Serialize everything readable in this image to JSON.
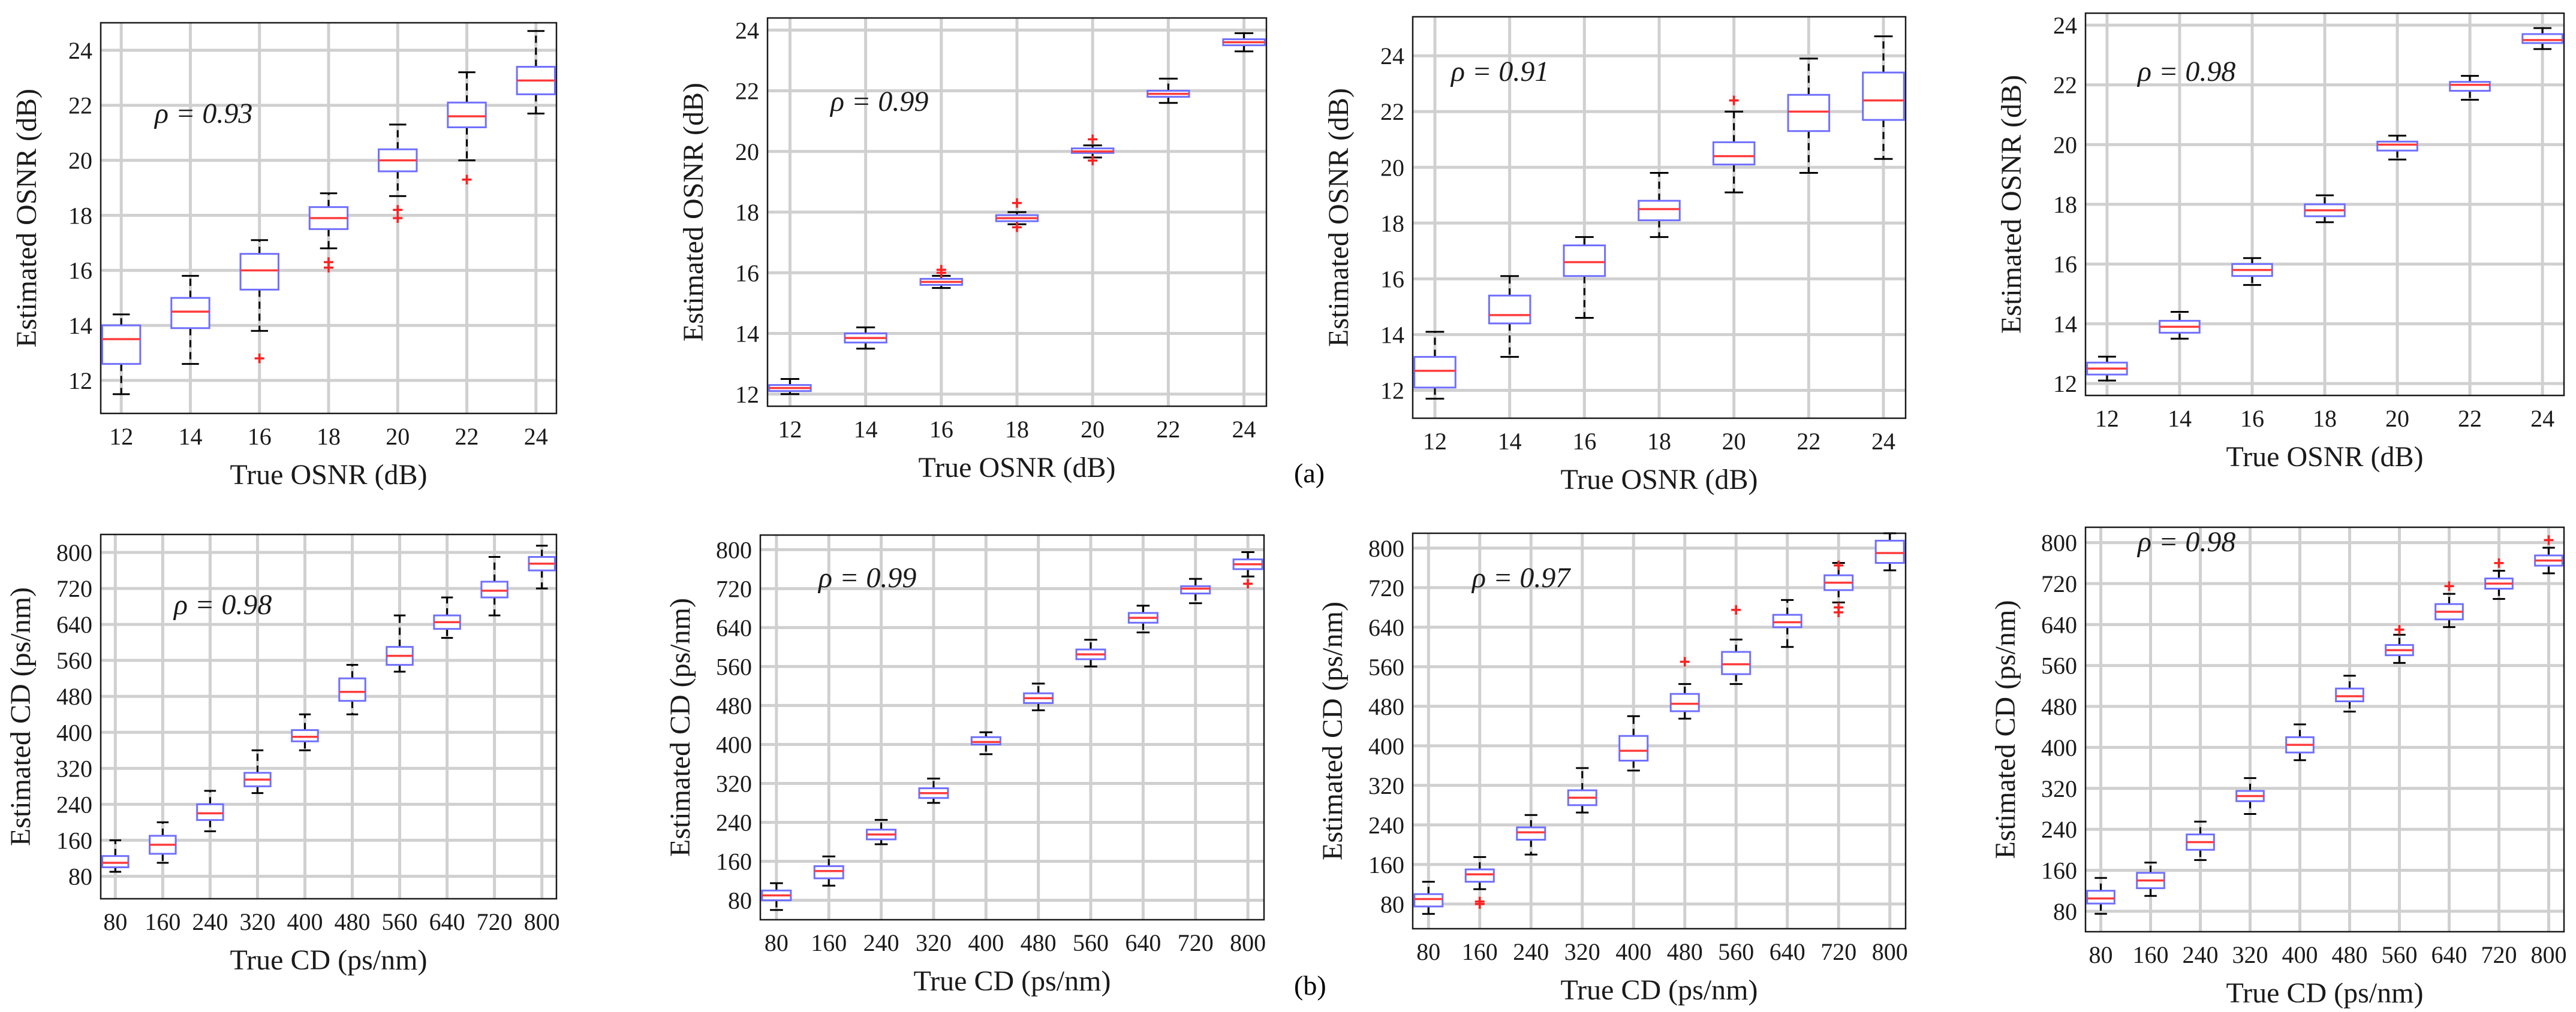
{
  "figure": {
    "label_a": "(a)",
    "label_b": "(b)"
  },
  "colors": {
    "box": "#6f6fff",
    "median": "#ff3b3b",
    "outlier": "#ff2020",
    "whisker": "#000000",
    "grid": "#d0d0d0",
    "frame": "#1a1a1a",
    "text": "#1a1a1a"
  },
  "chart_data": [
    {
      "type": "box",
      "title": "",
      "xlabel": "True OSNR (dB)",
      "ylabel": "Estimated OSNR (dB)",
      "annotation": "ρ = 0.93",
      "categories": [
        "12",
        "14",
        "16",
        "18",
        "20",
        "22",
        "24"
      ],
      "yticks": [
        12,
        14,
        16,
        18,
        20,
        22,
        24
      ],
      "ylim": [
        10.8,
        25.0
      ],
      "grid": true,
      "boxes": [
        {
          "q1": 12.6,
          "median": 13.5,
          "q3": 14.0,
          "whisker_low": 11.5,
          "whisker_high": 14.4,
          "outliers": []
        },
        {
          "q1": 13.9,
          "median": 14.5,
          "q3": 15.0,
          "whisker_low": 12.6,
          "whisker_high": 15.8,
          "outliers": []
        },
        {
          "q1": 15.3,
          "median": 16.0,
          "q3": 16.6,
          "whisker_low": 13.8,
          "whisker_high": 17.1,
          "outliers": [
            12.8
          ]
        },
        {
          "q1": 17.5,
          "median": 17.9,
          "q3": 18.3,
          "whisker_low": 16.8,
          "whisker_high": 18.8,
          "outliers": [
            16.3,
            16.1
          ]
        },
        {
          "q1": 19.6,
          "median": 20.0,
          "q3": 20.4,
          "whisker_low": 18.7,
          "whisker_high": 21.3,
          "outliers": [
            18.2,
            17.9
          ]
        },
        {
          "q1": 21.2,
          "median": 21.6,
          "q3": 22.1,
          "whisker_low": 20.0,
          "whisker_high": 23.2,
          "outliers": [
            19.3
          ]
        },
        {
          "q1": 22.4,
          "median": 22.9,
          "q3": 23.4,
          "whisker_low": 21.7,
          "whisker_high": 24.7,
          "outliers": []
        }
      ]
    },
    {
      "type": "box",
      "title": "",
      "xlabel": "True OSNR (dB)",
      "ylabel": "Estimated OSNR (dB)",
      "annotation": "ρ = 0.99",
      "categories": [
        "12",
        "14",
        "16",
        "18",
        "20",
        "22",
        "24"
      ],
      "yticks": [
        12,
        14,
        16,
        18,
        20,
        22,
        24
      ],
      "ylim": [
        11.6,
        24.4
      ],
      "grid": true,
      "boxes": [
        {
          "q1": 12.1,
          "median": 12.2,
          "q3": 12.3,
          "whisker_low": 12.0,
          "whisker_high": 12.5,
          "outliers": []
        },
        {
          "q1": 13.7,
          "median": 13.85,
          "q3": 14.0,
          "whisker_low": 13.5,
          "whisker_high": 14.2,
          "outliers": []
        },
        {
          "q1": 15.6,
          "median": 15.7,
          "q3": 15.8,
          "whisker_low": 15.5,
          "whisker_high": 15.9,
          "outliers": [
            16.1,
            16.0
          ]
        },
        {
          "q1": 17.7,
          "median": 17.8,
          "q3": 17.9,
          "whisker_low": 17.6,
          "whisker_high": 18.0,
          "outliers": [
            18.3,
            17.5
          ]
        },
        {
          "q1": 19.95,
          "median": 20.0,
          "q3": 20.1,
          "whisker_low": 19.8,
          "whisker_high": 20.2,
          "outliers": [
            20.4,
            19.7
          ]
        },
        {
          "q1": 21.8,
          "median": 21.9,
          "q3": 22.0,
          "whisker_low": 21.6,
          "whisker_high": 22.4,
          "outliers": []
        },
        {
          "q1": 23.5,
          "median": 23.6,
          "q3": 23.7,
          "whisker_low": 23.3,
          "whisker_high": 23.9,
          "outliers": []
        }
      ]
    },
    {
      "type": "box",
      "title": "",
      "xlabel": "True OSNR (dB)",
      "ylabel": "Estimated OSNR (dB)",
      "annotation": "ρ = 0.91",
      "categories": [
        "12",
        "14",
        "16",
        "18",
        "20",
        "22",
        "24"
      ],
      "yticks": [
        12,
        14,
        16,
        18,
        20,
        22,
        24
      ],
      "ylim": [
        11.0,
        25.4
      ],
      "grid": true,
      "boxes": [
        {
          "q1": 12.1,
          "median": 12.7,
          "q3": 13.2,
          "whisker_low": 11.7,
          "whisker_high": 14.1,
          "outliers": []
        },
        {
          "q1": 14.4,
          "median": 14.7,
          "q3": 15.4,
          "whisker_low": 13.2,
          "whisker_high": 16.1,
          "outliers": []
        },
        {
          "q1": 16.1,
          "median": 16.6,
          "q3": 17.2,
          "whisker_low": 14.6,
          "whisker_high": 17.5,
          "outliers": []
        },
        {
          "q1": 18.1,
          "median": 18.5,
          "q3": 18.8,
          "whisker_low": 17.5,
          "whisker_high": 19.8,
          "outliers": []
        },
        {
          "q1": 20.1,
          "median": 20.4,
          "q3": 20.9,
          "whisker_low": 19.1,
          "whisker_high": 22.0,
          "outliers": [
            22.4
          ]
        },
        {
          "q1": 21.3,
          "median": 22.0,
          "q3": 22.6,
          "whisker_low": 19.8,
          "whisker_high": 23.9,
          "outliers": []
        },
        {
          "q1": 21.7,
          "median": 22.4,
          "q3": 23.4,
          "whisker_low": 20.3,
          "whisker_high": 24.7,
          "outliers": []
        }
      ]
    },
    {
      "type": "box",
      "title": "",
      "xlabel": "True OSNR (dB)",
      "ylabel": "Estimated OSNR (dB)",
      "annotation": "ρ = 0.98",
      "categories": [
        "12",
        "14",
        "16",
        "18",
        "20",
        "22",
        "24"
      ],
      "yticks": [
        12,
        14,
        16,
        18,
        20,
        22,
        24
      ],
      "ylim": [
        11.6,
        24.4
      ],
      "grid": true,
      "boxes": [
        {
          "q1": 12.3,
          "median": 12.5,
          "q3": 12.7,
          "whisker_low": 12.1,
          "whisker_high": 12.9,
          "outliers": []
        },
        {
          "q1": 13.7,
          "median": 13.9,
          "q3": 14.1,
          "whisker_low": 13.5,
          "whisker_high": 14.4,
          "outliers": []
        },
        {
          "q1": 15.6,
          "median": 15.8,
          "q3": 16.0,
          "whisker_low": 15.3,
          "whisker_high": 16.2,
          "outliers": []
        },
        {
          "q1": 17.6,
          "median": 17.8,
          "q3": 18.0,
          "whisker_low": 17.4,
          "whisker_high": 18.3,
          "outliers": []
        },
        {
          "q1": 19.8,
          "median": 20.0,
          "q3": 20.1,
          "whisker_low": 19.5,
          "whisker_high": 20.3,
          "outliers": []
        },
        {
          "q1": 21.8,
          "median": 22.0,
          "q3": 22.1,
          "whisker_low": 21.5,
          "whisker_high": 22.3,
          "outliers": []
        },
        {
          "q1": 23.4,
          "median": 23.5,
          "q3": 23.7,
          "whisker_low": 23.2,
          "whisker_high": 23.9,
          "outliers": []
        }
      ]
    },
    {
      "type": "box",
      "title": "",
      "xlabel": "True CD (ps/nm)",
      "ylabel": "Estimated CD (ps/nm)",
      "annotation": "ρ = 0.98",
      "categories": [
        "80",
        "160",
        "240",
        "320",
        "400",
        "480",
        "560",
        "640",
        "720",
        "800"
      ],
      "yticks": [
        80,
        160,
        240,
        320,
        400,
        480,
        560,
        640,
        720,
        800
      ],
      "ylim": [
        30,
        840
      ],
      "grid": true,
      "boxes": [
        {
          "q1": 100,
          "median": 110,
          "q3": 125,
          "whisker_low": 90,
          "whisker_high": 160,
          "outliers": []
        },
        {
          "q1": 130,
          "median": 150,
          "q3": 170,
          "whisker_low": 110,
          "whisker_high": 200,
          "outliers": []
        },
        {
          "q1": 205,
          "median": 220,
          "q3": 240,
          "whisker_low": 180,
          "whisker_high": 270,
          "outliers": []
        },
        {
          "q1": 280,
          "median": 295,
          "q3": 310,
          "whisker_low": 265,
          "whisker_high": 360,
          "outliers": []
        },
        {
          "q1": 380,
          "median": 390,
          "q3": 405,
          "whisker_low": 360,
          "whisker_high": 440,
          "outliers": []
        },
        {
          "q1": 470,
          "median": 490,
          "q3": 520,
          "whisker_low": 440,
          "whisker_high": 550,
          "outliers": []
        },
        {
          "q1": 550,
          "median": 570,
          "q3": 590,
          "whisker_low": 535,
          "whisker_high": 660,
          "outliers": []
        },
        {
          "q1": 630,
          "median": 645,
          "q3": 660,
          "whisker_low": 610,
          "whisker_high": 700,
          "outliers": []
        },
        {
          "q1": 700,
          "median": 715,
          "q3": 735,
          "whisker_low": 660,
          "whisker_high": 790,
          "outliers": []
        },
        {
          "q1": 760,
          "median": 775,
          "q3": 790,
          "whisker_low": 720,
          "whisker_high": 815,
          "outliers": []
        }
      ]
    },
    {
      "type": "box",
      "title": "",
      "xlabel": "True CD (ps/nm)",
      "ylabel": "Estimated CD (ps/nm)",
      "annotation": "ρ = 0.99",
      "categories": [
        "80",
        "160",
        "240",
        "320",
        "400",
        "480",
        "560",
        "640",
        "720",
        "800"
      ],
      "yticks": [
        80,
        160,
        240,
        320,
        400,
        480,
        560,
        640,
        720,
        800
      ],
      "ylim": [
        40,
        830
      ],
      "grid": true,
      "boxes": [
        {
          "q1": 80,
          "median": 90,
          "q3": 100,
          "whisker_low": 60,
          "whisker_high": 115,
          "outliers": []
        },
        {
          "q1": 125,
          "median": 140,
          "q3": 150,
          "whisker_low": 110,
          "whisker_high": 170,
          "outliers": []
        },
        {
          "q1": 205,
          "median": 215,
          "q3": 225,
          "whisker_low": 195,
          "whisker_high": 245,
          "outliers": []
        },
        {
          "q1": 290,
          "median": 300,
          "q3": 310,
          "whisker_low": 280,
          "whisker_high": 330,
          "outliers": []
        },
        {
          "q1": 400,
          "median": 405,
          "q3": 415,
          "whisker_low": 380,
          "whisker_high": 425,
          "outliers": []
        },
        {
          "q1": 485,
          "median": 495,
          "q3": 505,
          "whisker_low": 470,
          "whisker_high": 525,
          "outliers": []
        },
        {
          "q1": 575,
          "median": 585,
          "q3": 595,
          "whisker_low": 560,
          "whisker_high": 615,
          "outliers": []
        },
        {
          "q1": 650,
          "median": 660,
          "q3": 670,
          "whisker_low": 630,
          "whisker_high": 685,
          "outliers": []
        },
        {
          "q1": 710,
          "median": 720,
          "q3": 725,
          "whisker_low": 690,
          "whisker_high": 740,
          "outliers": []
        },
        {
          "q1": 760,
          "median": 770,
          "q3": 780,
          "whisker_low": 745,
          "whisker_high": 795,
          "outliers": [
            730
          ]
        }
      ]
    },
    {
      "type": "box",
      "title": "",
      "xlabel": "True CD (ps/nm)",
      "ylabel": "Estimated CD (ps/nm)",
      "annotation": "ρ = 0.97",
      "categories": [
        "80",
        "160",
        "240",
        "320",
        "400",
        "480",
        "560",
        "640",
        "720",
        "800"
      ],
      "yticks": [
        80,
        160,
        240,
        320,
        400,
        480,
        560,
        640,
        720,
        800
      ],
      "ylim": [
        30,
        830
      ],
      "grid": true,
      "boxes": [
        {
          "q1": 75,
          "median": 90,
          "q3": 100,
          "whisker_low": 60,
          "whisker_high": 125,
          "outliers": []
        },
        {
          "q1": 125,
          "median": 140,
          "q3": 150,
          "whisker_low": 110,
          "whisker_high": 175,
          "outliers": [
            85,
            80
          ]
        },
        {
          "q1": 210,
          "median": 225,
          "q3": 235,
          "whisker_low": 180,
          "whisker_high": 260,
          "outliers": []
        },
        {
          "q1": 280,
          "median": 295,
          "q3": 310,
          "whisker_low": 265,
          "whisker_high": 355,
          "outliers": []
        },
        {
          "q1": 370,
          "median": 390,
          "q3": 420,
          "whisker_low": 350,
          "whisker_high": 460,
          "outliers": []
        },
        {
          "q1": 470,
          "median": 485,
          "q3": 505,
          "whisker_low": 455,
          "whisker_high": 525,
          "outliers": [
            570
          ]
        },
        {
          "q1": 545,
          "median": 565,
          "q3": 590,
          "whisker_low": 525,
          "whisker_high": 615,
          "outliers": [
            675
          ]
        },
        {
          "q1": 640,
          "median": 650,
          "q3": 665,
          "whisker_low": 600,
          "whisker_high": 695,
          "outliers": []
        },
        {
          "q1": 715,
          "median": 730,
          "q3": 745,
          "whisker_low": 690,
          "whisker_high": 770,
          "outliers": [
            765,
            670,
            680
          ]
        },
        {
          "q1": 770,
          "median": 790,
          "q3": 815,
          "whisker_low": 755,
          "whisker_high": 830,
          "outliers": []
        }
      ]
    },
    {
      "type": "box",
      "title": "",
      "xlabel": "True CD (ps/nm)",
      "ylabel": "Estimated CD (ps/nm)",
      "annotation": "ρ = 0.98",
      "categories": [
        "80",
        "160",
        "240",
        "320",
        "400",
        "480",
        "560",
        "640",
        "720",
        "800"
      ],
      "yticks": [
        80,
        160,
        240,
        320,
        400,
        480,
        560,
        640,
        720,
        800
      ],
      "ylim": [
        40,
        830
      ],
      "grid": true,
      "boxes": [
        {
          "q1": 95,
          "median": 105,
          "q3": 120,
          "whisker_low": 75,
          "whisker_high": 145,
          "outliers": []
        },
        {
          "q1": 125,
          "median": 140,
          "q3": 155,
          "whisker_low": 110,
          "whisker_high": 175,
          "outliers": []
        },
        {
          "q1": 200,
          "median": 215,
          "q3": 230,
          "whisker_low": 180,
          "whisker_high": 255,
          "outliers": []
        },
        {
          "q1": 295,
          "median": 305,
          "q3": 315,
          "whisker_low": 270,
          "whisker_high": 340,
          "outliers": []
        },
        {
          "q1": 390,
          "median": 405,
          "q3": 420,
          "whisker_low": 375,
          "whisker_high": 445,
          "outliers": []
        },
        {
          "q1": 490,
          "median": 500,
          "q3": 515,
          "whisker_low": 470,
          "whisker_high": 540,
          "outliers": []
        },
        {
          "q1": 580,
          "median": 590,
          "q3": 600,
          "whisker_low": 565,
          "whisker_high": 620,
          "outliers": [
            630
          ]
        },
        {
          "q1": 650,
          "median": 665,
          "q3": 680,
          "whisker_low": 635,
          "whisker_high": 700,
          "outliers": [
            715
          ]
        },
        {
          "q1": 710,
          "median": 720,
          "q3": 730,
          "whisker_low": 690,
          "whisker_high": 745,
          "outliers": [
            760
          ]
        },
        {
          "q1": 755,
          "median": 765,
          "q3": 775,
          "whisker_low": 740,
          "whisker_high": 790,
          "outliers": [
            805
          ]
        }
      ]
    }
  ]
}
